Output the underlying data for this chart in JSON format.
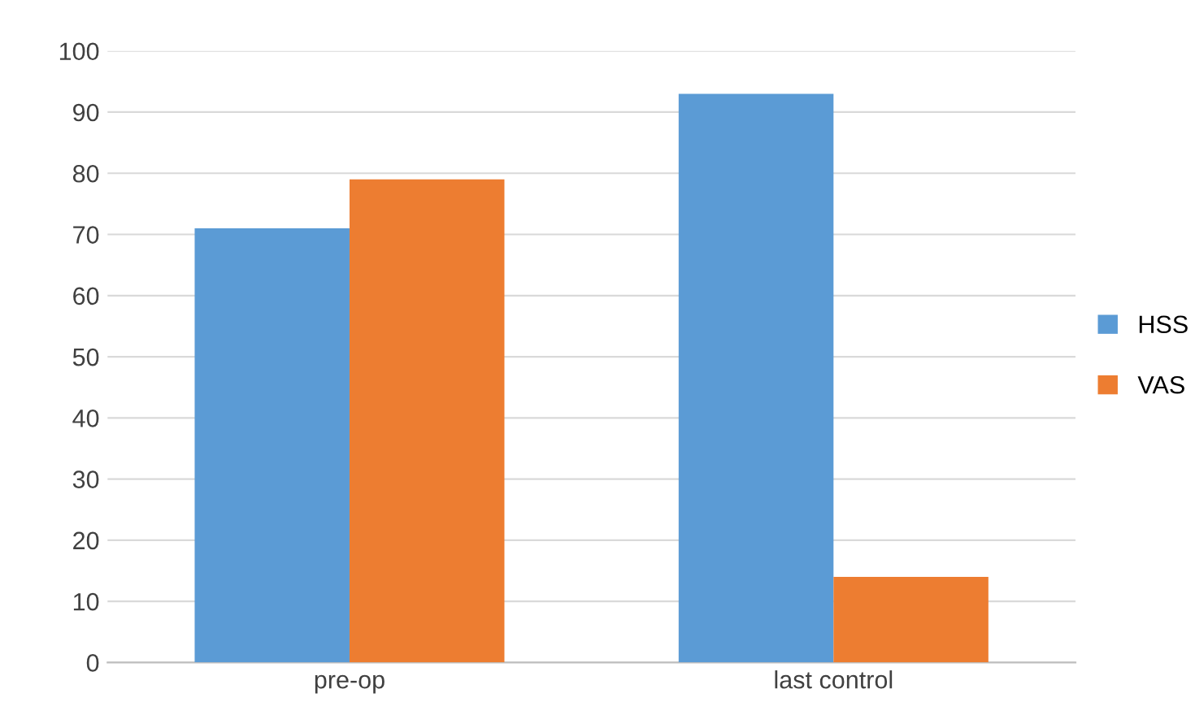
{
  "chart_data": {
    "type": "bar",
    "categories": [
      "pre-op",
      "last control"
    ],
    "series": [
      {
        "name": "HSS",
        "color": "#5b9bd5",
        "values": [
          71,
          93
        ]
      },
      {
        "name": "VAS",
        "color": "#ed7d31",
        "values": [
          79,
          14
        ]
      }
    ],
    "ylim": [
      0,
      100
    ],
    "yticks": [
      0,
      10,
      20,
      30,
      40,
      50,
      60,
      70,
      80,
      90,
      100
    ],
    "grid": "y",
    "legend": "right"
  }
}
